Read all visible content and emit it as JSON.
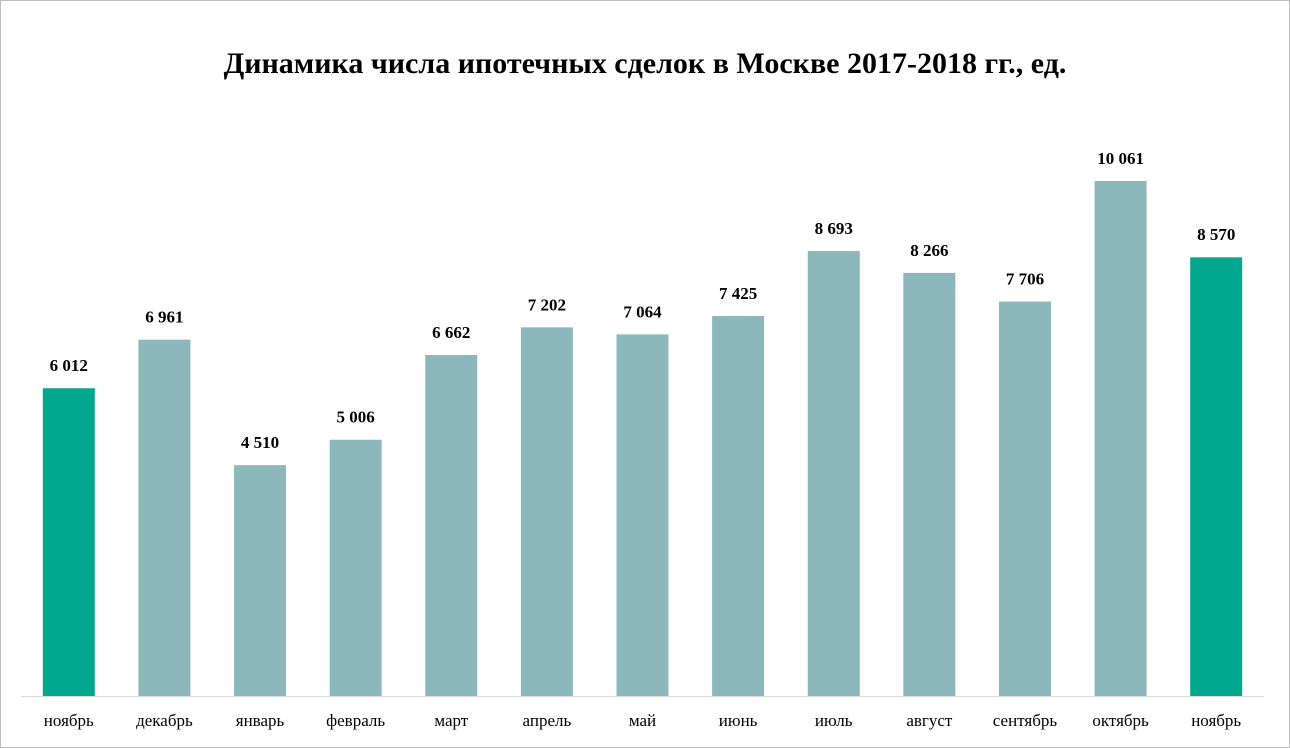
{
  "chart_data": {
    "type": "bar",
    "title": "Динамика числа ипотечных сделок в Москве 2017-2018 гг., ед.",
    "categories": [
      "ноябрь",
      "декабрь",
      "январь",
      "февраль",
      "март",
      "апрель",
      "май",
      "июнь",
      "июль",
      "август",
      "сентябрь",
      "октябрь",
      "ноябрь"
    ],
    "values": [
      6012,
      6961,
      4510,
      5006,
      6662,
      7202,
      7064,
      7425,
      8693,
      8266,
      7706,
      10061,
      8570
    ],
    "value_labels": [
      "6 012",
      "6 961",
      "4 510",
      "5 006",
      "6 662",
      "7 202",
      "7 064",
      "7 425",
      "8 693",
      "8 266",
      "7 706",
      "10 061",
      "8 570"
    ],
    "colors": [
      "#00a88e",
      "#8cb8bc",
      "#8cb8bc",
      "#8cb8bc",
      "#8cb8bc",
      "#8cb8bc",
      "#8cb8bc",
      "#8cb8bc",
      "#8cb8bc",
      "#8cb8bc",
      "#8cb8bc",
      "#8cb8bc",
      "#00a88e"
    ]
  }
}
